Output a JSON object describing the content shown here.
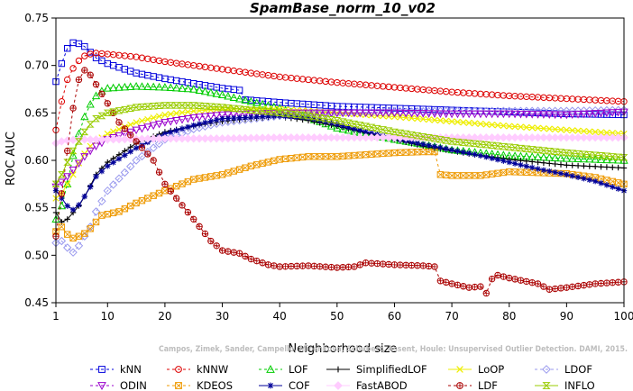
{
  "chart_data": {
    "type": "line",
    "title": "SpamBase_norm_10_v02",
    "xlabel": "Neighborhood size",
    "ylabel": "ROC AUC",
    "xlim": [
      1,
      100
    ],
    "ylim": [
      0.45,
      0.75
    ],
    "xticks": [
      1,
      10,
      20,
      30,
      40,
      50,
      60,
      70,
      80,
      90,
      100
    ],
    "yticks": [
      0.45,
      0.5,
      0.55,
      0.6,
      0.65,
      0.7,
      0.75
    ],
    "grid": false,
    "legend_position": "bottom",
    "watermark": "Campos, Zimek, Sander, Campello, Micenkova, Schubert, Assent, Houle: Unsupervised Outlier Detection. DAMI, 2015.",
    "series": [
      {
        "name": "kNN",
        "color": "#0000dd",
        "marker": "square",
        "dashed": true,
        "points": [
          [
            1,
            0.683
          ],
          [
            2,
            0.702
          ],
          [
            3,
            0.718
          ],
          [
            4,
            0.724
          ],
          [
            5,
            0.723
          ],
          [
            6,
            0.72
          ],
          [
            7,
            0.714
          ],
          [
            8,
            0.708
          ],
          [
            10,
            0.702
          ],
          [
            15,
            0.692
          ],
          [
            20,
            0.686
          ],
          [
            25,
            0.681
          ],
          [
            30,
            0.676
          ],
          [
            33,
            0.674
          ],
          [
            34,
            0.664
          ],
          [
            40,
            0.661
          ],
          [
            50,
            0.657
          ],
          [
            60,
            0.655
          ],
          [
            70,
            0.653
          ],
          [
            80,
            0.651
          ],
          [
            90,
            0.649
          ],
          [
            100,
            0.648
          ]
        ]
      },
      {
        "name": "kNNW",
        "color": "#dd0000",
        "marker": "circle",
        "dashed": true,
        "points": [
          [
            1,
            0.632
          ],
          [
            2,
            0.662
          ],
          [
            3,
            0.685
          ],
          [
            4,
            0.697
          ],
          [
            5,
            0.705
          ],
          [
            6,
            0.71
          ],
          [
            7,
            0.712
          ],
          [
            8,
            0.713
          ],
          [
            10,
            0.712
          ],
          [
            15,
            0.709
          ],
          [
            20,
            0.704
          ],
          [
            30,
            0.696
          ],
          [
            40,
            0.688
          ],
          [
            50,
            0.682
          ],
          [
            60,
            0.677
          ],
          [
            70,
            0.672
          ],
          [
            80,
            0.668
          ],
          [
            90,
            0.665
          ],
          [
            100,
            0.662
          ]
        ]
      },
      {
        "name": "LOF",
        "color": "#00cc00",
        "marker": "triangle",
        "dashed": true,
        "points": [
          [
            1,
            0.538
          ],
          [
            2,
            0.552
          ],
          [
            3,
            0.575
          ],
          [
            4,
            0.605
          ],
          [
            5,
            0.628
          ],
          [
            6,
            0.646
          ],
          [
            7,
            0.659
          ],
          [
            8,
            0.668
          ],
          [
            9,
            0.673
          ],
          [
            10,
            0.676
          ],
          [
            15,
            0.678
          ],
          [
            20,
            0.677
          ],
          [
            25,
            0.675
          ],
          [
            30,
            0.669
          ],
          [
            35,
            0.662
          ],
          [
            40,
            0.655
          ],
          [
            45,
            0.645
          ],
          [
            50,
            0.634
          ],
          [
            55,
            0.628
          ],
          [
            60,
            0.622
          ],
          [
            65,
            0.617
          ],
          [
            70,
            0.611
          ],
          [
            75,
            0.608
          ],
          [
            80,
            0.605
          ],
          [
            90,
            0.602
          ],
          [
            100,
            0.6
          ]
        ]
      },
      {
        "name": "SimplifiedLOF",
        "color": "#000000",
        "marker": "plus",
        "dashed": false,
        "points": [
          [
            1,
            0.545
          ],
          [
            2,
            0.535
          ],
          [
            3,
            0.538
          ],
          [
            4,
            0.545
          ],
          [
            5,
            0.552
          ],
          [
            6,
            0.562
          ],
          [
            7,
            0.573
          ],
          [
            8,
            0.585
          ],
          [
            10,
            0.598
          ],
          [
            15,
            0.618
          ],
          [
            20,
            0.63
          ],
          [
            25,
            0.636
          ],
          [
            30,
            0.641
          ],
          [
            35,
            0.644
          ],
          [
            40,
            0.646
          ],
          [
            45,
            0.642
          ],
          [
            50,
            0.636
          ],
          [
            55,
            0.629
          ],
          [
            60,
            0.622
          ],
          [
            65,
            0.615
          ],
          [
            70,
            0.61
          ],
          [
            75,
            0.605
          ],
          [
            80,
            0.601
          ],
          [
            90,
            0.595
          ],
          [
            100,
            0.592
          ]
        ]
      },
      {
        "name": "LoOP",
        "color": "#eeee00",
        "marker": "x",
        "dashed": false,
        "points": [
          [
            1,
            0.56
          ],
          [
            2,
            0.565
          ],
          [
            3,
            0.575
          ],
          [
            4,
            0.585
          ],
          [
            5,
            0.597
          ],
          [
            6,
            0.607
          ],
          [
            7,
            0.615
          ],
          [
            8,
            0.62
          ],
          [
            10,
            0.628
          ],
          [
            15,
            0.64
          ],
          [
            20,
            0.648
          ],
          [
            25,
            0.652
          ],
          [
            30,
            0.654
          ],
          [
            40,
            0.654
          ],
          [
            50,
            0.65
          ],
          [
            60,
            0.646
          ],
          [
            70,
            0.641
          ],
          [
            80,
            0.636
          ],
          [
            90,
            0.632
          ],
          [
            100,
            0.628
          ]
        ]
      },
      {
        "name": "LDOF",
        "color": "#9999ee",
        "marker": "diamond",
        "dashed": true,
        "points": [
          [
            1,
            0.513
          ],
          [
            2,
            0.515
          ],
          [
            3,
            0.508
          ],
          [
            4,
            0.503
          ],
          [
            5,
            0.51
          ],
          [
            6,
            0.52
          ],
          [
            7,
            0.53
          ],
          [
            8,
            0.546
          ],
          [
            10,
            0.568
          ],
          [
            15,
            0.6
          ],
          [
            20,
            0.622
          ],
          [
            25,
            0.633
          ],
          [
            30,
            0.64
          ],
          [
            40,
            0.647
          ],
          [
            50,
            0.65
          ],
          [
            60,
            0.651
          ],
          [
            70,
            0.652
          ],
          [
            80,
            0.652
          ],
          [
            90,
            0.652
          ],
          [
            100,
            0.653
          ]
        ]
      },
      {
        "name": "ODIN",
        "color": "#9900cc",
        "marker": "triangle-down",
        "dashed": true,
        "points": [
          [
            1,
            0.572
          ],
          [
            2,
            0.577
          ],
          [
            3,
            0.583
          ],
          [
            4,
            0.59
          ],
          [
            5,
            0.597
          ],
          [
            6,
            0.604
          ],
          [
            7,
            0.61
          ],
          [
            8,
            0.615
          ],
          [
            10,
            0.622
          ],
          [
            15,
            0.632
          ],
          [
            20,
            0.64
          ],
          [
            25,
            0.645
          ],
          [
            30,
            0.648
          ],
          [
            40,
            0.65
          ],
          [
            50,
            0.65
          ],
          [
            60,
            0.65
          ],
          [
            70,
            0.649
          ],
          [
            80,
            0.649
          ],
          [
            90,
            0.648
          ],
          [
            100,
            0.651
          ]
        ]
      },
      {
        "name": "KDEOS",
        "color": "#ee9900",
        "marker": "boxsquare",
        "dashed": true,
        "points": [
          [
            1,
            0.525
          ],
          [
            2,
            0.53
          ],
          [
            3,
            0.522
          ],
          [
            4,
            0.518
          ],
          [
            5,
            0.52
          ],
          [
            6,
            0.523
          ],
          [
            7,
            0.528
          ],
          [
            8,
            0.535
          ],
          [
            9,
            0.542
          ],
          [
            12,
            0.546
          ],
          [
            15,
            0.555
          ],
          [
            20,
            0.568
          ],
          [
            25,
            0.58
          ],
          [
            30,
            0.585
          ],
          [
            35,
            0.594
          ],
          [
            40,
            0.601
          ],
          [
            45,
            0.604
          ],
          [
            50,
            0.604
          ],
          [
            55,
            0.606
          ],
          [
            60,
            0.608
          ],
          [
            65,
            0.609
          ],
          [
            67,
            0.609
          ],
          [
            68,
            0.585
          ],
          [
            70,
            0.584
          ],
          [
            75,
            0.584
          ],
          [
            80,
            0.588
          ],
          [
            85,
            0.587
          ],
          [
            90,
            0.586
          ],
          [
            95,
            0.582
          ],
          [
            100,
            0.575
          ]
        ]
      },
      {
        "name": "COF",
        "color": "#000099",
        "marker": "asterisk",
        "dashed": false,
        "points": [
          [
            1,
            0.568
          ],
          [
            2,
            0.56
          ],
          [
            3,
            0.552
          ],
          [
            4,
            0.548
          ],
          [
            5,
            0.553
          ],
          [
            6,
            0.562
          ],
          [
            7,
            0.572
          ],
          [
            8,
            0.583
          ],
          [
            10,
            0.594
          ],
          [
            15,
            0.613
          ],
          [
            20,
            0.628
          ],
          [
            25,
            0.637
          ],
          [
            30,
            0.644
          ],
          [
            40,
            0.647
          ],
          [
            45,
            0.645
          ],
          [
            50,
            0.638
          ],
          [
            55,
            0.63
          ],
          [
            60,
            0.623
          ],
          [
            65,
            0.617
          ],
          [
            70,
            0.611
          ],
          [
            75,
            0.605
          ],
          [
            80,
            0.598
          ],
          [
            85,
            0.591
          ],
          [
            90,
            0.585
          ],
          [
            95,
            0.578
          ],
          [
            100,
            0.568
          ]
        ]
      },
      {
        "name": "FastABOD",
        "color": "#ffccff",
        "marker": "diamond-filled",
        "dashed": false,
        "points": [
          [
            1,
            0.618
          ],
          [
            2,
            0.62
          ],
          [
            3,
            0.621
          ],
          [
            5,
            0.622
          ],
          [
            10,
            0.622
          ],
          [
            20,
            0.623
          ],
          [
            30,
            0.623
          ],
          [
            40,
            0.624
          ],
          [
            50,
            0.624
          ],
          [
            60,
            0.624
          ],
          [
            70,
            0.624
          ],
          [
            80,
            0.624
          ],
          [
            90,
            0.624
          ],
          [
            100,
            0.624
          ]
        ]
      },
      {
        "name": "LDF",
        "color": "#aa0000",
        "marker": "circle-plus",
        "dashed": true,
        "points": [
          [
            1,
            0.52
          ],
          [
            2,
            0.565
          ],
          [
            3,
            0.61
          ],
          [
            4,
            0.655
          ],
          [
            5,
            0.685
          ],
          [
            6,
            0.695
          ],
          [
            7,
            0.69
          ],
          [
            8,
            0.68
          ],
          [
            10,
            0.66
          ],
          [
            12,
            0.64
          ],
          [
            15,
            0.62
          ],
          [
            18,
            0.6
          ],
          [
            20,
            0.575
          ],
          [
            22,
            0.56
          ],
          [
            25,
            0.538
          ],
          [
            28,
            0.515
          ],
          [
            30,
            0.505
          ],
          [
            33,
            0.502
          ],
          [
            35,
            0.496
          ],
          [
            38,
            0.49
          ],
          [
            40,
            0.488
          ],
          [
            45,
            0.489
          ],
          [
            50,
            0.487
          ],
          [
            53,
            0.488
          ],
          [
            55,
            0.492
          ],
          [
            60,
            0.49
          ],
          [
            65,
            0.489
          ],
          [
            67,
            0.488
          ],
          [
            68,
            0.473
          ],
          [
            70,
            0.47
          ],
          [
            73,
            0.466
          ],
          [
            75,
            0.467
          ],
          [
            76,
            0.46
          ],
          [
            77,
            0.475
          ],
          [
            78,
            0.479
          ],
          [
            80,
            0.476
          ],
          [
            85,
            0.47
          ],
          [
            87,
            0.464
          ],
          [
            90,
            0.466
          ],
          [
            95,
            0.47
          ],
          [
            100,
            0.472
          ]
        ]
      },
      {
        "name": "INFLO",
        "color": "#99cc00",
        "marker": "hourglass",
        "dashed": false,
        "points": [
          [
            1,
            0.575
          ],
          [
            2,
            0.585
          ],
          [
            3,
            0.598
          ],
          [
            4,
            0.61
          ],
          [
            5,
            0.62
          ],
          [
            6,
            0.63
          ],
          [
            7,
            0.638
          ],
          [
            8,
            0.644
          ],
          [
            10,
            0.65
          ],
          [
            15,
            0.656
          ],
          [
            20,
            0.658
          ],
          [
            25,
            0.658
          ],
          [
            30,
            0.656
          ],
          [
            35,
            0.653
          ],
          [
            40,
            0.65
          ],
          [
            45,
            0.647
          ],
          [
            50,
            0.642
          ],
          [
            55,
            0.636
          ],
          [
            60,
            0.63
          ],
          [
            65,
            0.625
          ],
          [
            70,
            0.62
          ],
          [
            75,
            0.617
          ],
          [
            80,
            0.614
          ],
          [
            90,
            0.608
          ],
          [
            100,
            0.603
          ]
        ]
      }
    ]
  }
}
